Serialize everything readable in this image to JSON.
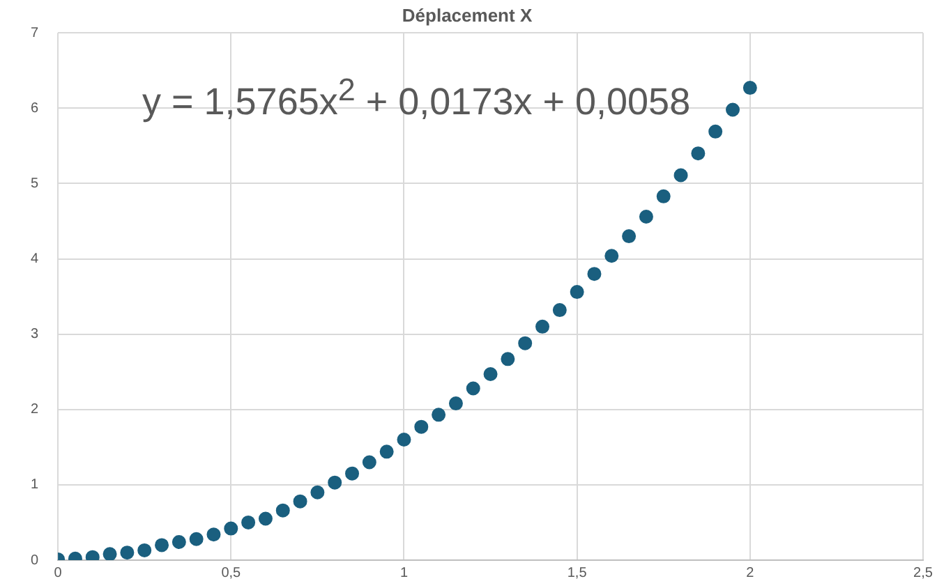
{
  "chart_data": {
    "type": "scatter",
    "title": "Déplacement X",
    "annotations": [
      "y = 1,5765x$^{2}$ + 0,0173x + 0,0058"
    ],
    "x": [
      0,
      0.05,
      0.1,
      0.15,
      0.2,
      0.25,
      0.3,
      0.35,
      0.4,
      0.45,
      0.5,
      0.55,
      0.6,
      0.65,
      0.7,
      0.75,
      0.8,
      0.85,
      0.9,
      0.95,
      1,
      1.05,
      1.1,
      1.15,
      1.2,
      1.25,
      1.3,
      1.35,
      1.4,
      1.45,
      1.5,
      1.55,
      1.6,
      1.65,
      1.7,
      1.75,
      1.8,
      1.85,
      1.9,
      1.95,
      2
    ],
    "series": [
      {
        "color": "#1a5f7f",
        "values": [
          0.01,
          0.02,
          0.04,
          0.08,
          0.1,
          0.13,
          0.2,
          0.24,
          0.28,
          0.34,
          0.42,
          0.5,
          0.55,
          0.66,
          0.78,
          0.9,
          1.03,
          1.15,
          1.3,
          1.44,
          1.6,
          1.77,
          1.93,
          2.08,
          2.28,
          2.47,
          2.67,
          2.88,
          3.1,
          3.32,
          3.56,
          3.8,
          4.04,
          4.3,
          4.56,
          4.83,
          5.11,
          5.4,
          5.69,
          5.98,
          6.27
        ]
      }
    ],
    "xlim": [
      0,
      2.5
    ],
    "xticks": [
      0,
      {
        "value": 0.5,
        "label": "0,5"
      },
      1,
      {
        "value": 1.5,
        "label": "1,5"
      },
      2,
      {
        "value": 2.5,
        "label": "2,5"
      }
    ],
    "ylim": [
      0,
      7
    ],
    "yticks": [
      0,
      1,
      2,
      3,
      4,
      5,
      6,
      7
    ],
    "grid": true,
    "legend": false,
    "marker": "circle"
  }
}
